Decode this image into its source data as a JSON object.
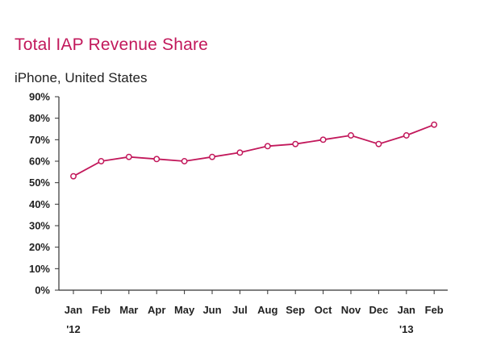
{
  "colors": {
    "line": "#c2185b",
    "axis": "#333333",
    "text": "#222222"
  },
  "chart_data": {
    "type": "line",
    "title": "Total IAP Revenue Share",
    "subtitle": "iPhone, United States",
    "categories": [
      "Jan",
      "Feb",
      "Mar",
      "Apr",
      "May",
      "Jun",
      "Jul",
      "Aug",
      "Sep",
      "Oct",
      "Nov",
      "Dec",
      "Jan",
      "Feb"
    ],
    "year_labels": [
      "'12",
      "",
      "",
      "",
      "",
      "",
      "",
      "",
      "",
      "",
      "",
      "",
      "'13",
      ""
    ],
    "series": [
      {
        "values": [
          53,
          60,
          62,
          61,
          60,
          62,
          64,
          67,
          68,
          70,
          72,
          68,
          72,
          77
        ]
      }
    ],
    "ylim": [
      0,
      90
    ],
    "yticks": [
      "0%",
      "10%",
      "20%",
      "30%",
      "40%",
      "50%",
      "60%",
      "70%",
      "80%",
      "90%"
    ],
    "ytick_values": [
      0,
      10,
      20,
      30,
      40,
      50,
      60,
      70,
      80,
      90
    ],
    "grid": false,
    "xlabel": "",
    "ylabel": ""
  }
}
